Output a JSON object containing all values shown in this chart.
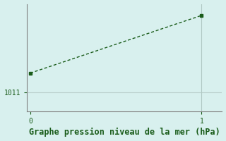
{
  "x": [
    0,
    1
  ],
  "y": [
    1013.5,
    1021.0
  ],
  "line_color": "#1a5c1a",
  "marker": "s",
  "markersize": 3,
  "bg_color": "#d8f0ee",
  "axis_color": "#808080",
  "xlabel": "Graphe pression niveau de la mer (hPa)",
  "xlabel_color": "#1a5c1a",
  "xlabel_fontsize": 8.5,
  "ytick_label": "1011",
  "ytick_value": 1011,
  "ylim": [
    1008.5,
    1022.5
  ],
  "xlim": [
    -0.02,
    1.12
  ],
  "xticks": [
    0,
    1
  ],
  "vline_x": 1,
  "vline_color": "#b0c8c4",
  "hline_y": 1011,
  "hline_color": "#b8ceca"
}
